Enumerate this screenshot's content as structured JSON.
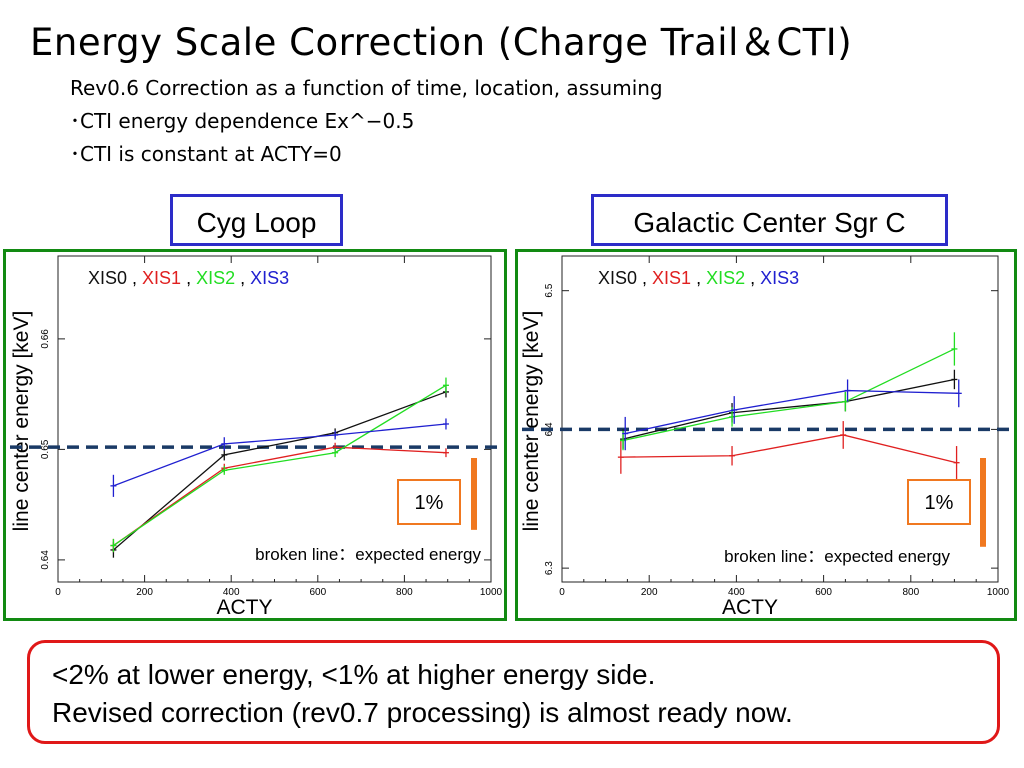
{
  "slide": {
    "title": "Energy Scale Correction (Charge Trail＆CTI)",
    "subtitle_lines": [
      "Rev0.6 Correction as a function of time, location, assuming",
      "･CTI  energy dependence Ex^−0.5",
      "･CTI is constant at ACTY=0"
    ],
    "summary_lines": [
      "<2% at lower energy, <1% at higher energy side.",
      "Revised correction (rev0.7 processing) is almost ready now."
    ]
  },
  "colors": {
    "XIS0": "#111111",
    "XIS1": "#e02020",
    "XIS2": "#22dd22",
    "XIS3": "#2020d0",
    "expected": "#1a3a66",
    "scale_bar": "#f07820",
    "panel_border": "#128a12",
    "label_border": "#2c2cc8",
    "summary_border": "#e01818"
  },
  "chart_data": [
    {
      "type": "line",
      "panel_label": "Cyg Loop",
      "xlabel": "ACTY",
      "ylabel": "line center energy [keV]",
      "xlim": [
        0,
        1000
      ],
      "ylim": [
        0.638,
        0.6675
      ],
      "xticks": [
        0,
        200,
        400,
        600,
        800,
        1000
      ],
      "yticks": [
        0.64,
        0.65,
        0.66
      ],
      "legend_position": "top-left",
      "expected_energy": 0.6502,
      "expected_label": "broken line：expected energy",
      "scale_bar_label": "1%",
      "scale_bar_fraction": 0.01,
      "series": [
        {
          "name": "XIS0",
          "x": [
            128,
            384,
            640,
            896
          ],
          "y": [
            0.6409,
            0.6495,
            0.6515,
            0.6552
          ],
          "err": [
            0.0007,
            0.0005,
            0.0004,
            0.0005
          ]
        },
        {
          "name": "XIS1",
          "x": [
            128,
            384,
            640,
            896
          ],
          "y": [
            0.6413,
            0.6483,
            0.6502,
            0.6497
          ],
          "err": [
            0.0006,
            0.0004,
            0.0004,
            0.0004
          ]
        },
        {
          "name": "XIS2",
          "x": [
            128,
            384,
            640,
            896
          ],
          "y": [
            0.6413,
            0.6481,
            0.6497,
            0.6558
          ],
          "err": [
            0.0006,
            0.0004,
            0.0004,
            0.0007
          ]
        },
        {
          "name": "XIS3",
          "x": [
            128,
            384,
            640,
            896
          ],
          "y": [
            0.6467,
            0.6505,
            0.6513,
            0.6523
          ],
          "err": [
            0.001,
            0.0006,
            0.0004,
            0.0005
          ]
        }
      ]
    },
    {
      "type": "line",
      "panel_label": "Galactic Center Sgr C",
      "xlabel": "ACTY",
      "ylabel": "line center energy [keV]",
      "xlim": [
        0,
        1000
      ],
      "ylim": [
        6.29,
        6.525
      ],
      "xticks": [
        0,
        200,
        400,
        600,
        800,
        1000
      ],
      "yticks": [
        6.3,
        6.4,
        6.5
      ],
      "legend_position": "top-left",
      "expected_energy": 6.4,
      "expected_label": "broken line：expected energy",
      "scale_bar_label": "1%",
      "scale_bar_fraction": 0.01,
      "series": [
        {
          "name": "XIS0",
          "x": [
            140,
            390,
            650,
            900
          ],
          "y": [
            6.393,
            6.412,
            6.42,
            6.436
          ],
          "err": [
            0.007,
            0.007,
            0.007,
            0.007
          ]
        },
        {
          "name": "XIS1",
          "x": [
            135,
            390,
            645,
            905
          ],
          "y": [
            6.38,
            6.381,
            6.396,
            6.376
          ],
          "err": [
            0.012,
            0.007,
            0.01,
            0.012
          ]
        },
        {
          "name": "XIS2",
          "x": [
            140,
            390,
            650,
            900
          ],
          "y": [
            6.392,
            6.409,
            6.42,
            6.458
          ],
          "err": [
            0.007,
            0.007,
            0.007,
            0.012
          ]
        },
        {
          "name": "XIS3",
          "x": [
            145,
            395,
            655,
            910
          ],
          "y": [
            6.397,
            6.414,
            6.428,
            6.426
          ],
          "err": [
            0.012,
            0.01,
            0.008,
            0.01
          ]
        }
      ]
    }
  ]
}
